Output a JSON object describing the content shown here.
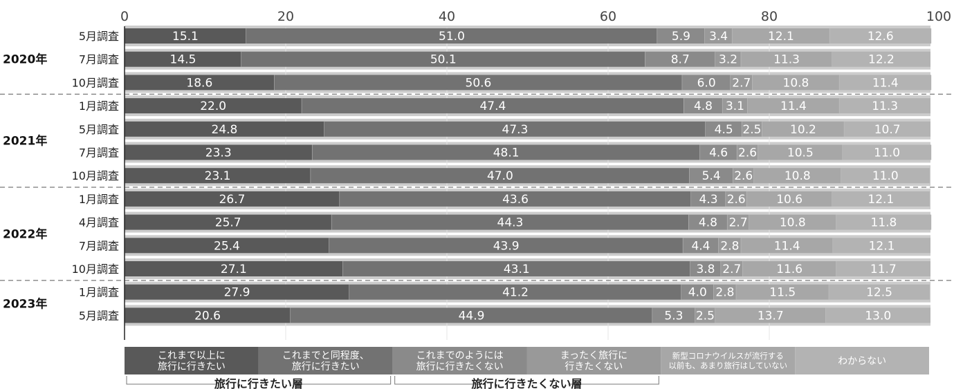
{
  "chart_data": {
    "type": "bar",
    "orientation": "horizontal",
    "stacked": true,
    "xlim": [
      0,
      100
    ],
    "x_ticks": [
      "0",
      "20",
      "40",
      "60",
      "80",
      "100"
    ],
    "years": [
      {
        "label": "2020年",
        "rows": [
          0,
          1,
          2
        ]
      },
      {
        "label": "2021年",
        "rows": [
          3,
          4,
          5,
          6
        ]
      },
      {
        "label": "2022年",
        "rows": [
          7,
          8,
          9,
          10
        ]
      },
      {
        "label": "2023年",
        "rows": [
          11,
          12
        ]
      }
    ],
    "categories": [
      "5月調査",
      "7月調査",
      "10月調査",
      "1月調査",
      "5月調査",
      "7月調査",
      "10月調査",
      "1月調査",
      "4月調査",
      "7月調査",
      "10月調査",
      "1月調査",
      "5月調査"
    ],
    "series": [
      {
        "name": "これまで以上に旅行に行きたい",
        "legend_lines": [
          "これまで以上に",
          "旅行に行きたい"
        ],
        "color": "#595959",
        "values": [
          "15.1",
          "14.5",
          "18.6",
          "22.0",
          "24.8",
          "23.3",
          "23.1",
          "26.7",
          "25.7",
          "25.4",
          "27.1",
          "27.9",
          "20.6"
        ]
      },
      {
        "name": "これまでと同程度、旅行に行きたい",
        "legend_lines": [
          "これまでと同程度、",
          "旅行に行きたい"
        ],
        "color": "#727272",
        "values": [
          "51.0",
          "50.1",
          "50.6",
          "47.4",
          "47.3",
          "48.1",
          "47.0",
          "43.6",
          "44.3",
          "43.9",
          "43.1",
          "41.2",
          "44.9"
        ]
      },
      {
        "name": "これまでのようには旅行に行きたくない",
        "legend_lines": [
          "これまでのようには",
          "旅行に行きたくない"
        ],
        "color": "#8a8a8a",
        "values": [
          "5.9",
          "8.7",
          "6.0",
          "4.8",
          "4.5",
          "4.6",
          "5.4",
          "4.3",
          "4.8",
          "4.4",
          "3.8",
          "4.0",
          "5.3"
        ]
      },
      {
        "name": "まったく旅行に行きたくない",
        "legend_lines": [
          "まったく旅行に",
          "行きたくない"
        ],
        "color": "#999999",
        "values": [
          "3.4",
          "3.2",
          "2.7",
          "3.1",
          "2.5",
          "2.6",
          "2.6",
          "2.6",
          "2.7",
          "2.8",
          "2.7",
          "2.8",
          "2.5"
        ]
      },
      {
        "name": "新型コロナウイルスが流行する以前も、あまり旅行はしていない",
        "legend_lines": [
          "新型コロナウイルスが流行する",
          "以前も、あまり旅行はしていない"
        ],
        "color": "#a7a7a7",
        "values": [
          "12.1",
          "11.3",
          "10.8",
          "11.4",
          "10.2",
          "10.5",
          "10.8",
          "10.6",
          "10.8",
          "11.4",
          "11.6",
          "11.5",
          "13.7"
        ]
      },
      {
        "name": "わからない",
        "legend_lines": [
          "わからない"
        ],
        "color": "#b3b3b3",
        "values": [
          "12.6",
          "12.2",
          "11.4",
          "11.3",
          "10.7",
          "11.0",
          "11.0",
          "12.1",
          "11.8",
          "12.1",
          "11.7",
          "12.5",
          "13.0"
        ]
      }
    ],
    "groups": [
      {
        "label": "旅行に行きたい層",
        "series": [
          0,
          1
        ]
      },
      {
        "label": "旅行に行きたくない層",
        "series": [
          2,
          3
        ]
      }
    ],
    "background_band_color": "#cccccc",
    "legend_position": "bottom",
    "grid": true
  }
}
